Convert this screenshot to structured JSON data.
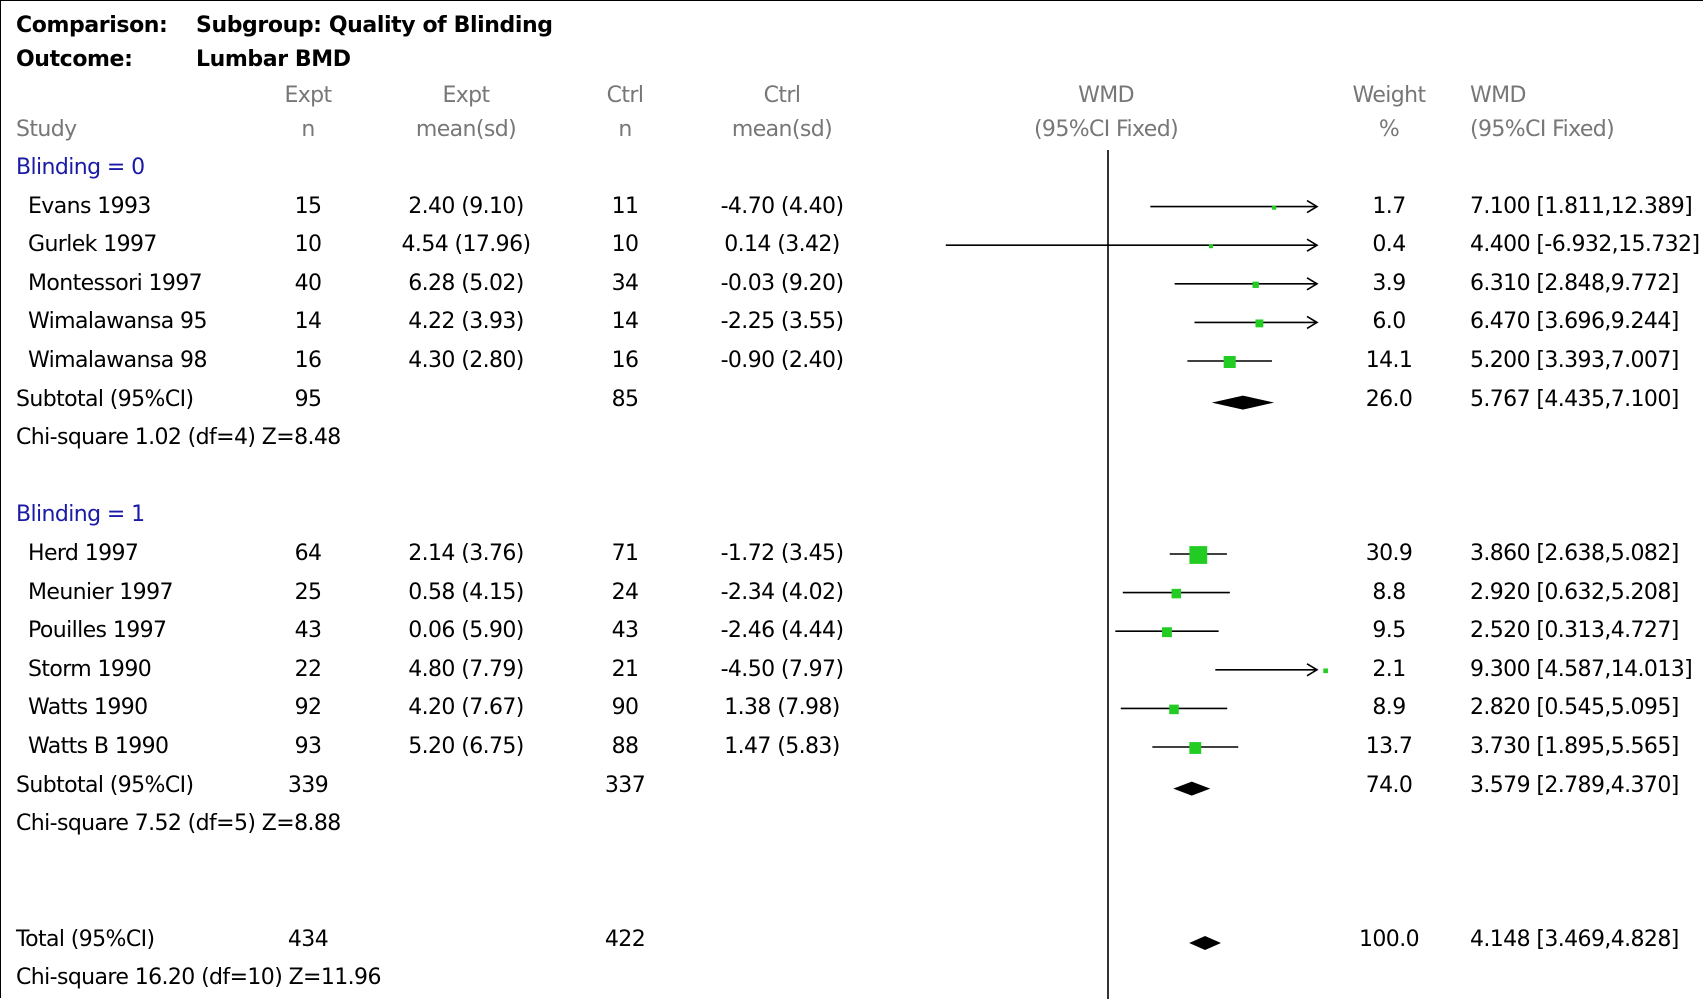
{
  "header": {
    "comparison_label": "Comparison:",
    "comparison_value": "Subgroup: Quality of Blinding",
    "outcome_label": "Outcome:",
    "outcome_value": "Lumbar BMD"
  },
  "columns": {
    "study": [
      "",
      "Study"
    ],
    "expt_n": [
      "Expt",
      "n"
    ],
    "expt_mean": [
      "Expt",
      "mean(sd)"
    ],
    "ctrl_n": [
      "Ctrl",
      "n"
    ],
    "ctrl_mean": [
      "Ctrl",
      "mean(sd)"
    ],
    "wmd_plot": [
      "WMD",
      "(95%CI Fixed)"
    ],
    "weight": [
      "Weight",
      "%"
    ],
    "wmd_ci": [
      "WMD",
      "(95%CI Fixed)"
    ]
  },
  "colors": {
    "square": "#22cc22",
    "diamond": "#000000",
    "line": "#000000",
    "group_label": "#1a1aa6",
    "header_gray": "#777777"
  },
  "chart_data": {
    "type": "forest",
    "x_range": [
      -10,
      10
    ],
    "null_line": 0,
    "groups": [
      {
        "label": "Blinding = 0",
        "studies": [
          {
            "study": "Evans 1993",
            "expt_n": "15",
            "expt_mean": "2.40 (9.10)",
            "ctrl_n": "11",
            "ctrl_mean": "-4.70 (4.40)",
            "weight": "1.7",
            "wmd_text": "7.100 [1.811,12.389]",
            "wmd": 7.1,
            "lo": 1.811,
            "hi": 12.389
          },
          {
            "study": "Gurlek 1997",
            "expt_n": "10",
            "expt_mean": "4.54 (17.96)",
            "ctrl_n": "10",
            "ctrl_mean": "0.14 (3.42)",
            "weight": "0.4",
            "wmd_text": "4.400 [-6.932,15.732]",
            "wmd": 4.4,
            "lo": -6.932,
            "hi": 15.732
          },
          {
            "study": "Montessori 1997",
            "expt_n": "40",
            "expt_mean": "6.28 (5.02)",
            "ctrl_n": "34",
            "ctrl_mean": "-0.03 (9.20)",
            "weight": "3.9",
            "wmd_text": "6.310 [2.848,9.772]",
            "wmd": 6.31,
            "lo": 2.848,
            "hi": 9.772
          },
          {
            "study": "Wimalawansa 95",
            "expt_n": "14",
            "expt_mean": "4.22 (3.93)",
            "ctrl_n": "14",
            "ctrl_mean": "-2.25 (3.55)",
            "weight": "6.0",
            "wmd_text": "6.470 [3.696,9.244]",
            "wmd": 6.47,
            "lo": 3.696,
            "hi": 9.244
          },
          {
            "study": "Wimalawansa 98",
            "expt_n": "16",
            "expt_mean": "4.30 (2.80)",
            "ctrl_n": "16",
            "ctrl_mean": "-0.90 (2.40)",
            "weight": "14.1",
            "wmd_text": "5.200 [3.393,7.007]",
            "wmd": 5.2,
            "lo": 3.393,
            "hi": 7.007
          }
        ],
        "subtotal": {
          "label": "Subtotal (95%CI)",
          "expt_n": "95",
          "ctrl_n": "85",
          "weight": "26.0",
          "wmd_text": "5.767 [4.435,7.100]",
          "wmd": 5.767,
          "lo": 4.435,
          "hi": 7.1
        },
        "heterogeneity": "Chi-square 1.02 (df=4)  Z=8.48"
      },
      {
        "label": "Blinding = 1",
        "studies": [
          {
            "study": "Herd 1997",
            "expt_n": "64",
            "expt_mean": "2.14 (3.76)",
            "ctrl_n": "71",
            "ctrl_mean": "-1.72 (3.45)",
            "weight": "30.9",
            "wmd_text": "3.860 [2.638,5.082]",
            "wmd": 3.86,
            "lo": 2.638,
            "hi": 5.082
          },
          {
            "study": "Meunier 1997",
            "expt_n": "25",
            "expt_mean": "0.58 (4.15)",
            "ctrl_n": "24",
            "ctrl_mean": "-2.34 (4.02)",
            "weight": "8.8",
            "wmd_text": "2.920 [0.632,5.208]",
            "wmd": 2.92,
            "lo": 0.632,
            "hi": 5.208
          },
          {
            "study": "Pouilles 1997",
            "expt_n": "43",
            "expt_mean": "0.06 (5.90)",
            "ctrl_n": "43",
            "ctrl_mean": "-2.46 (4.44)",
            "weight": "9.5",
            "wmd_text": "2.520 [0.313,4.727]",
            "wmd": 2.52,
            "lo": 0.313,
            "hi": 4.727
          },
          {
            "study": "Storm 1990",
            "expt_n": "22",
            "expt_mean": "4.80 (7.79)",
            "ctrl_n": "21",
            "ctrl_mean": "-4.50 (7.97)",
            "weight": "2.1",
            "wmd_text": "9.300 [4.587,14.013]",
            "wmd": 9.3,
            "lo": 4.587,
            "hi": 14.013
          },
          {
            "study": "Watts 1990",
            "expt_n": "92",
            "expt_mean": "4.20 (7.67)",
            "ctrl_n": "90",
            "ctrl_mean": "1.38 (7.98)",
            "weight": "8.9",
            "wmd_text": "2.820 [0.545,5.095]",
            "wmd": 2.82,
            "lo": 0.545,
            "hi": 5.095
          },
          {
            "study": "Watts B 1990",
            "expt_n": "93",
            "expt_mean": "5.20 (6.75)",
            "ctrl_n": "88",
            "ctrl_mean": "1.47 (5.83)",
            "weight": "13.7",
            "wmd_text": "3.730 [1.895,5.565]",
            "wmd": 3.73,
            "lo": 1.895,
            "hi": 5.565
          }
        ],
        "subtotal": {
          "label": "Subtotal (95%CI)",
          "expt_n": "339",
          "ctrl_n": "337",
          "weight": "74.0",
          "wmd_text": "3.579 [2.789,4.370]",
          "wmd": 3.579,
          "lo": 2.789,
          "hi": 4.37
        },
        "heterogeneity": "Chi-square 7.52 (df=5)  Z=8.88"
      }
    ],
    "total": {
      "label": "Total (95%CI)",
      "expt_n": "434",
      "ctrl_n": "422",
      "weight": "100.0",
      "wmd_text": "4.148 [3.469,4.828]",
      "wmd": 4.148,
      "lo": 3.469,
      "hi": 4.828
    },
    "total_heterogeneity": "Chi-square 16.20 (df=10)  Z=11.96"
  }
}
